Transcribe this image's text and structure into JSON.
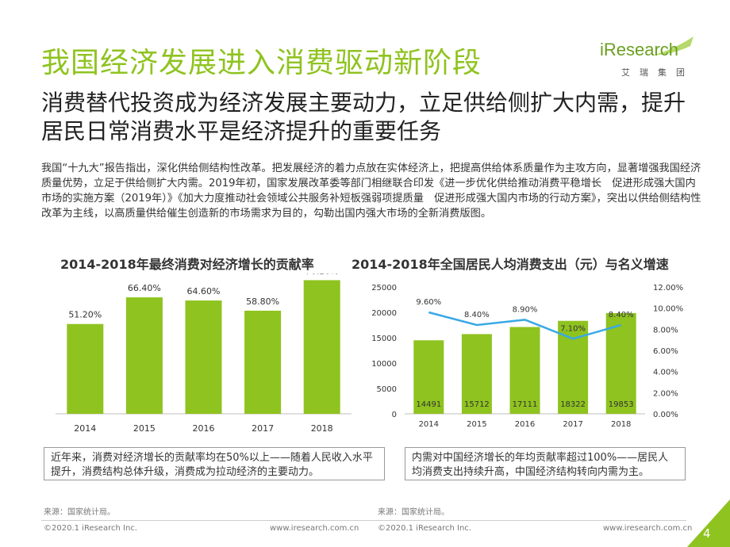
{
  "header": {
    "title": "我国经济发展进入消费驱动新阶段",
    "subtitle": "消费替代投资成为经济发展主要动力，立足供给侧扩大内需，提升居民日常消费水平是经济提升的重要任务"
  },
  "logo": {
    "word": "iResearch",
    "sub": "艾瑞集团"
  },
  "body_text": "我国“十九大”报告指出，深化供给侧结构性改革。把发展经济的着力点放在实体经济上，把提高供给体系质量作为主攻方向，显著增强我国经济质量优势，立足于供给侧扩大内需。2019年初，国家发展改革委等部门相继联合印发《进一步优化供给推动消费平稳增长　促进形成强大国内市场的实施方案（2019年）》《加大力度推动社会领域公共服务补短板强弱项提质量　促进形成强大国内市场的行动方案》，突出以供给侧结构性改革为主线，以高质量供给催生创造新的市场需求为目的，勾勒出国内强大市场的全新消费版图。",
  "colors": {
    "accent": "#8fc31f",
    "line": "#39a9e5",
    "bar": "#8fc31f"
  },
  "chart_data": [
    {
      "type": "bar",
      "title": "2014-2018年最终消费对经济增长的贡献率",
      "categories": [
        "2014",
        "2015",
        "2016",
        "2017",
        "2018"
      ],
      "values": [
        51.2,
        66.4,
        64.6,
        58.8,
        76.2
      ],
      "data_labels": [
        "51.20%",
        "66.40%",
        "64.60%",
        "58.80%",
        "76.20%"
      ],
      "ylim": [
        0,
        80
      ],
      "grid": false
    },
    {
      "type": "bar+line",
      "title": "2014-2018年全国居民人均消费支出（元）与名义增速",
      "categories": [
        "2014",
        "2015",
        "2016",
        "2017",
        "2018"
      ],
      "series": [
        {
          "type": "bar",
          "axis": "left",
          "values": [
            14491,
            15712,
            17111,
            18322,
            19853
          ],
          "data_labels": [
            "14491",
            "15712",
            "17111",
            "18322",
            "19853"
          ]
        },
        {
          "type": "line",
          "axis": "right",
          "values": [
            9.6,
            8.4,
            8.9,
            7.1,
            8.4
          ],
          "data_labels": [
            "9.60%",
            "8.40%",
            "8.90%",
            "7.10%",
            "8.40%"
          ]
        }
      ],
      "ylim": [
        0,
        25000
      ],
      "yticks": [
        "0",
        "5000",
        "10000",
        "15000",
        "20000",
        "25000"
      ],
      "y2lim": [
        0,
        12
      ],
      "y2ticks": [
        "0.00%",
        "2.00%",
        "4.00%",
        "6.00%",
        "8.00%",
        "10.00%",
        "12.00%"
      ],
      "grid": false
    }
  ],
  "callouts": [
    "近年来，消费对经济增长的贡献率均在50%以上——随着人民收入水平提升，消费结构总体升级，消费成为拉动经济的主要动力。",
    "内需对中国经济增长的年均贡献率超过100%——居民人均消费支出持续升高，中国经济结构转向内需为主。"
  ],
  "footer": {
    "source_left": "来源：国家统计局。",
    "source_right": "来源：国家统计局。",
    "copyright_left": "©2020.1 iResearch Inc.",
    "url_left": "www.iresearch.com.cn",
    "copyright_right": "©2020.1 iResearch Inc.",
    "url_right": "www.iresearch.com.cn",
    "page_number": "4"
  }
}
